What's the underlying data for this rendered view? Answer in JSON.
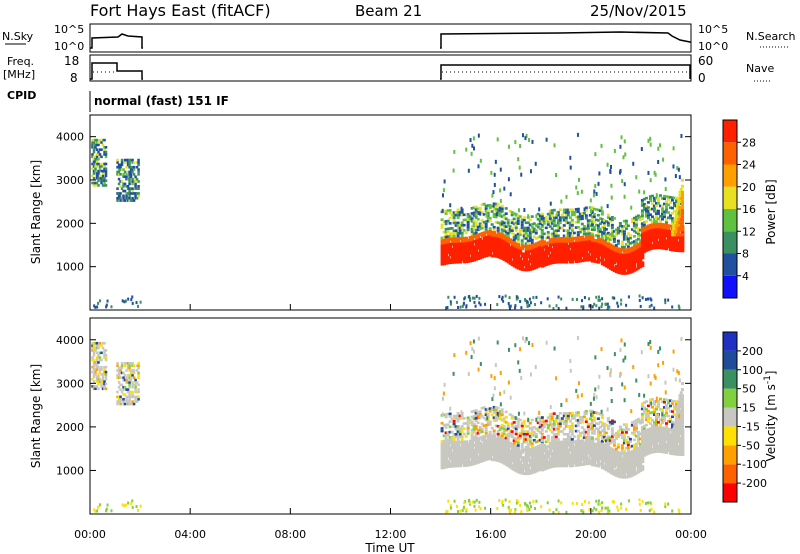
{
  "header": {
    "title": "Fort Hays East (fitACF)",
    "beam": "Beam 21",
    "date": "25/Nov/2015"
  },
  "strips": {
    "nsky_label": "N.Sky",
    "nsky_ticks": [
      "10^5",
      "10^0"
    ],
    "nsearch_label": "N.Search",
    "nsearch_ticks": [
      "10^5",
      "10^0"
    ],
    "freq_label": "Freq.",
    "freq_unit": "[MHz]",
    "freq_ticks": [
      "18",
      "8"
    ],
    "nave_label": "Nave",
    "nave_ticks": [
      "60",
      "0"
    ],
    "cpid_label": "CPID",
    "cpid_text": "normal (fast) 151 IF"
  },
  "colors": {
    "power": [
      "#1010ff",
      "#2050a0",
      "#3a9060",
      "#60c040",
      "#e8e020",
      "#ffa000",
      "#ff6000",
      "#ff2000"
    ],
    "velocity": [
      "#ff0000",
      "#ff6000",
      "#ffa000",
      "#ffe000",
      "#c8c8c0",
      "#80d040",
      "#3a9060",
      "#204a9a",
      "#2030c0"
    ]
  },
  "chart_data": [
    {
      "type": "heatmap",
      "name": "power",
      "ylabel": "Slant Range [km]",
      "yticks": [
        "4000",
        "3000",
        "2000",
        "1000"
      ],
      "ylim": [
        0,
        4500
      ],
      "xlim": [
        0,
        24
      ],
      "colorbar_label": "Power [dB]",
      "colorbar_ticks": [
        "28",
        "24",
        "20",
        "16",
        "12",
        "8",
        "4"
      ],
      "segments": [
        {
          "start_hr": 14.0,
          "end_hr": 16.0,
          "center_km": 1450
        },
        {
          "start_hr": 16.0,
          "end_hr": 18.0,
          "center_km": 1420
        },
        {
          "start_hr": 18.0,
          "end_hr": 20.0,
          "center_km": 1380
        },
        {
          "start_hr": 20.0,
          "end_hr": 22.0,
          "center_km": 1350
        },
        {
          "start_hr": 22.0,
          "end_hr": 23.6,
          "center_km": 1650
        }
      ]
    },
    {
      "type": "heatmap",
      "name": "velocity",
      "ylabel": "Slant Range [km]",
      "yticks": [
        "4000",
        "3000",
        "2000",
        "1000"
      ],
      "ylim": [
        0,
        4500
      ],
      "xlim": [
        0,
        24
      ],
      "xlabel": "Time UT",
      "xticks": [
        "00:00",
        "04:00",
        "08:00",
        "12:00",
        "16:00",
        "20:00",
        "00:00"
      ],
      "colorbar_label": "Velocity [m s",
      "colorbar_unit_sup": "-1",
      "colorbar_unit_close": "]",
      "colorbar_ticks": [
        "200",
        "100",
        "50",
        "15",
        "-15",
        "-50",
        "-100",
        "-200"
      ]
    }
  ]
}
